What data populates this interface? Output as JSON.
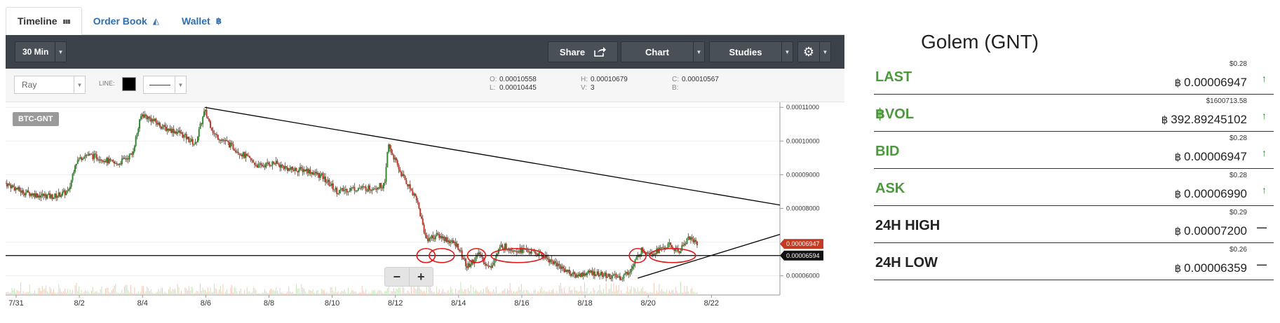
{
  "tabs": [
    {
      "label": "Timeline",
      "icon": "bar-chart-icon",
      "glyph": "▮▮▮"
    },
    {
      "label": "Order Book",
      "icon": "area-chart-icon",
      "glyph": "◭"
    },
    {
      "label": "Wallet",
      "icon": "bitcoin-icon",
      "glyph": "฿"
    }
  ],
  "toolbar": {
    "interval": "30 Min",
    "share": "Share",
    "chart": "Chart",
    "studies": "Studies"
  },
  "drawing": {
    "tool": "Ray",
    "line_label": "LINE:",
    "line_color": "#000000"
  },
  "ohlc": {
    "o_label": "O:",
    "o": "0.00010558",
    "h_label": "H:",
    "h": "0.00010679",
    "c_label": "C:",
    "c": "0.00010567",
    "l_label": "L:",
    "l": "0.00010445",
    "v_label": "V:",
    "v": "3",
    "b_label": "B:"
  },
  "chart_data": {
    "type": "candlestick",
    "symbol": "BTC-GNT",
    "x_labels": [
      "7/31",
      "8/2",
      "8/4",
      "8/6",
      "8/8",
      "8/10",
      "8/12",
      "8/14",
      "8/16",
      "8/18",
      "8/20",
      "8/22"
    ],
    "y_labels": [
      "0.00011000",
      "0.00010000",
      "0.00009000",
      "0.00008000",
      "0.00006000"
    ],
    "ylim": [
      5.43e-05,
      0.0001115
    ],
    "last_price": "0.00006947",
    "crosshair_price": "0.00006594",
    "price_path": [
      [
        0,
        8.75e-05
      ],
      [
        0.5,
        8.5e-05
      ],
      [
        1.0,
        8.4e-05
      ],
      [
        1.5,
        8.35e-05
      ],
      [
        2.0,
        8.5e-05
      ],
      [
        2.2,
        9.35e-05
      ],
      [
        2.5,
        9.6e-05
      ],
      [
        3.0,
        9.5e-05
      ],
      [
        3.5,
        9.3e-05
      ],
      [
        4.0,
        9.6e-05
      ],
      [
        4.3,
        0.000108
      ],
      [
        4.6,
        0.0001065
      ],
      [
        5.0,
        0.000104
      ],
      [
        5.5,
        0.0001025
      ],
      [
        6.0,
        9.9e-05
      ],
      [
        6.3,
        0.000109
      ],
      [
        6.6,
        0.000102
      ],
      [
        7.0,
        9.95e-05
      ],
      [
        7.5,
        9.6e-05
      ],
      [
        8.0,
        9.25e-05
      ],
      [
        8.5,
        9.35e-05
      ],
      [
        9.0,
        9.15e-05
      ],
      [
        9.5,
        9.15e-05
      ],
      [
        10.0,
        8.95e-05
      ],
      [
        10.5,
        8.5e-05
      ],
      [
        11.0,
        8.6e-05
      ],
      [
        11.5,
        8.6e-05
      ],
      [
        12.0,
        8.7e-05
      ],
      [
        12.1,
        9.9e-05
      ],
      [
        12.5,
        9.05e-05
      ],
      [
        13.0,
        8.3e-05
      ],
      [
        13.3,
        7.1e-05
      ],
      [
        13.7,
        7.2e-05
      ],
      [
        14.0,
        7.05e-05
      ],
      [
        14.3,
        6.9e-05
      ],
      [
        14.6,
        6.25e-05
      ],
      [
        15.0,
        6.65e-05
      ],
      [
        15.3,
        6.2e-05
      ],
      [
        15.7,
        6.9e-05
      ],
      [
        16.0,
        6.8e-05
      ],
      [
        16.5,
        6.75e-05
      ],
      [
        17.0,
        6.6e-05
      ],
      [
        17.5,
        6.3e-05
      ],
      [
        18.0,
        6e-05
      ],
      [
        18.5,
        6.1e-05
      ],
      [
        19.0,
        6e-05
      ],
      [
        19.5,
        5.95e-05
      ],
      [
        19.8,
        6.2e-05
      ],
      [
        20.1,
        6.75e-05
      ],
      [
        20.5,
        6.7e-05
      ],
      [
        21.0,
        6.9e-05
      ],
      [
        21.3,
        6.7e-05
      ],
      [
        21.6,
        7.15e-05
      ],
      [
        21.9,
        6.95e-05
      ]
    ],
    "trendlines": [
      {
        "from": [
          6.3,
          0.00011
        ],
        "to": [
          24.5,
          8.1e-05
        ]
      },
      {
        "from": [
          20.0,
          5.93e-05
        ],
        "to": [
          24.5,
          7.23e-05
        ]
      }
    ],
    "support": 6.6e-05,
    "highlight_ovals": [
      13.3,
      13.8,
      14.9,
      16.2,
      20.0,
      21.1
    ]
  },
  "zoom": {
    "minus": "−",
    "plus": "+"
  },
  "market": {
    "title": "Golem (GNT)",
    "rows": [
      {
        "label": "LAST",
        "usd": "$0.28",
        "value": "0.00006947",
        "trend": "up",
        "color": "green"
      },
      {
        "label": "฿VOL",
        "usd": "$1600713.58",
        "value": "392.89245102",
        "trend": "up",
        "color": "green"
      },
      {
        "label": "BID",
        "usd": "$0.28",
        "value": "0.00006947",
        "trend": "up",
        "color": "green"
      },
      {
        "label": "ASK",
        "usd": "$0.28",
        "value": "0.00006990",
        "trend": "up",
        "color": "green"
      },
      {
        "label": "24H HIGH",
        "usd": "$0.29",
        "value": "0.00007200",
        "trend": "flat",
        "color": "dark"
      },
      {
        "label": "24H LOW",
        "usd": "$0.26",
        "value": "0.00006359",
        "trend": "flat",
        "color": "dark"
      }
    ],
    "btc_symbol": "฿",
    "up_arrow": "↑",
    "flat_mark": "—"
  }
}
